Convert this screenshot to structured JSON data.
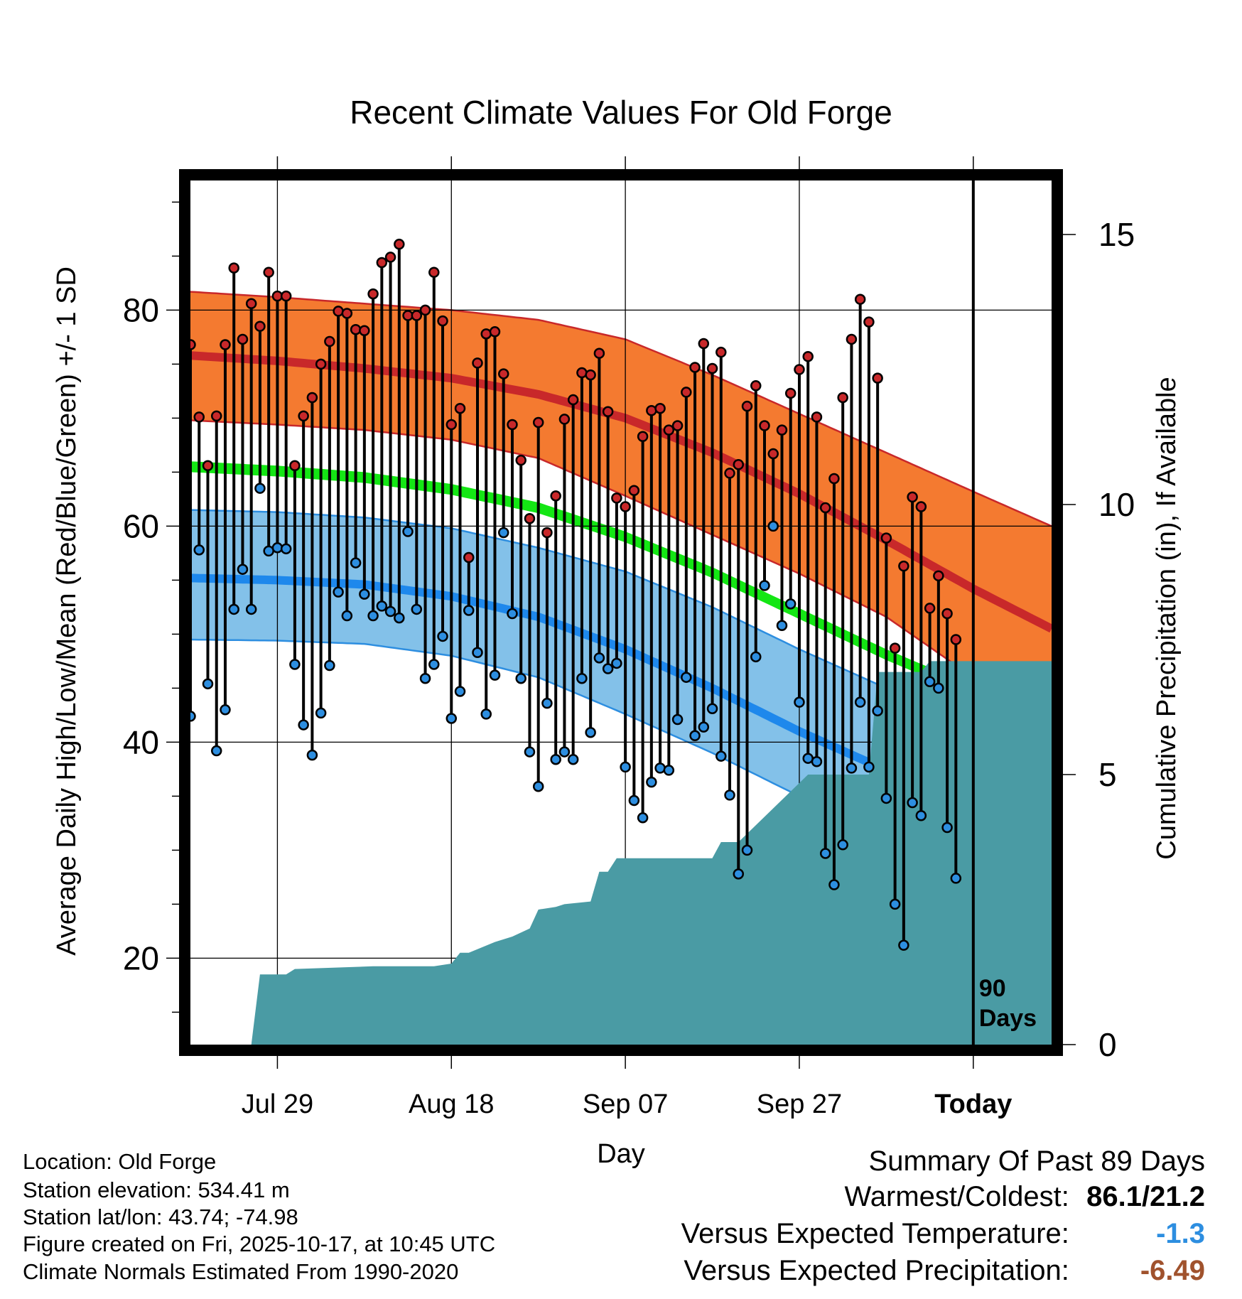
{
  "chart_data": {
    "type": "line",
    "title": "Recent Climate Values For Old Forge",
    "xlabel": "Day",
    "ylabel": "Average Daily High/Low/Mean (Red/Blue/Green) +/- 1 SD",
    "y2label": "Cumulative Precipitation (in), If Available",
    "x_ticks": [
      {
        "day": 20,
        "label": "Jul 29"
      },
      {
        "day": 40,
        "label": "Aug 18"
      },
      {
        "day": 60,
        "label": "Sep 07"
      },
      {
        "day": 80,
        "label": "Sep 27"
      },
      {
        "day": 100,
        "label": "Today"
      }
    ],
    "xlim": [
      10,
      109
    ],
    "ylim": [
      12,
      92
    ],
    "y_ticks": [
      20,
      40,
      60,
      80
    ],
    "y2lim": [
      0,
      16
    ],
    "y2_ticks": [
      0,
      5,
      10,
      15
    ],
    "today_day": 100,
    "today_note": [
      "90",
      "Days"
    ],
    "normal_days": [
      10,
      20,
      30,
      40,
      50,
      60,
      70,
      80,
      90,
      100,
      109
    ],
    "normal_high_mean": [
      75.8,
      75.3,
      74.6,
      73.7,
      72.2,
      70.0,
      66.8,
      63.0,
      58.7,
      54.2,
      50.5
    ],
    "normal_high_upper": [
      81.7,
      81.2,
      80.6,
      80.0,
      79.1,
      77.3,
      74.0,
      70.4,
      66.8,
      63.2,
      60.0
    ],
    "normal_high_lower": [
      69.8,
      69.4,
      68.9,
      68.0,
      66.3,
      62.8,
      59.2,
      55.6,
      51.6,
      46.0,
      41.2
    ],
    "normal_mean_upper": [
      66.0,
      65.6,
      65.0,
      63.9,
      62.2,
      59.5,
      56.2,
      52.4,
      48.6,
      45.2,
      41.8
    ],
    "normal_mean_lower": [
      65.0,
      64.6,
      64.0,
      62.9,
      61.2,
      58.5,
      55.2,
      51.4,
      47.6,
      44.2,
      40.8
    ],
    "normal_low_mean": [
      55.2,
      55.0,
      54.6,
      53.5,
      51.6,
      48.6,
      45.0,
      41.0,
      37.4,
      35.3,
      33.0
    ],
    "normal_low_upper": [
      61.5,
      61.3,
      60.8,
      59.8,
      58.0,
      55.8,
      52.5,
      48.6,
      45.0,
      43.5,
      41.0
    ],
    "normal_low_lower": [
      49.5,
      49.4,
      49.1,
      48.0,
      46.0,
      42.6,
      39.0,
      35.0,
      31.0,
      27.5,
      25.0
    ],
    "series": [
      {
        "name": "Daily High",
        "color": "#c8282a",
        "values": [
          76.8,
          70.1,
          65.6,
          70.2,
          76.8,
          83.9,
          77.3,
          80.6,
          78.5,
          83.5,
          81.3,
          81.3,
          65.6,
          70.2,
          71.9,
          75.0,
          77.1,
          79.9,
          79.7,
          78.2,
          78.1,
          81.5,
          84.4,
          84.9,
          86.1,
          79.5,
          79.5,
          80.0,
          83.5,
          79.0,
          69.4,
          70.9,
          57.1,
          75.1,
          77.8,
          78.0,
          74.1,
          69.4,
          66.1,
          60.7,
          69.6,
          59.4,
          62.8,
          69.9,
          71.7,
          74.2,
          74.0,
          76.0,
          70.6,
          62.6,
          61.8,
          63.3,
          68.3,
          70.7,
          70.9,
          68.9,
          69.3,
          72.4,
          74.7,
          76.9,
          74.6,
          76.1,
          64.9,
          65.7,
          71.1,
          73.0,
          69.3,
          66.7,
          68.9,
          72.3,
          74.5,
          75.7,
          70.1,
          61.7,
          64.4,
          71.9,
          77.3,
          81.0,
          78.9,
          73.7,
          58.9,
          48.7,
          56.3,
          62.7,
          61.8,
          52.4,
          55.4,
          51.9,
          49.5
        ]
      },
      {
        "name": "Daily Low",
        "color": "#2d8ee0",
        "values": [
          42.4,
          57.8,
          45.4,
          39.2,
          43.0,
          52.3,
          56.0,
          52.3,
          63.5,
          57.7,
          58.0,
          57.9,
          47.2,
          41.6,
          38.8,
          42.7,
          47.1,
          53.9,
          51.7,
          56.6,
          53.7,
          51.7,
          52.6,
          52.1,
          51.5,
          59.5,
          52.3,
          45.9,
          47.2,
          49.8,
          42.2,
          44.7,
          52.2,
          48.3,
          42.6,
          46.2,
          59.4,
          51.9,
          45.9,
          39.1,
          35.9,
          43.6,
          38.4,
          39.1,
          38.4,
          45.9,
          40.9,
          47.8,
          46.8,
          47.3,
          37.7,
          34.6,
          33.0,
          36.3,
          37.6,
          37.4,
          42.1,
          46.0,
          40.6,
          41.4,
          43.1,
          38.7,
          35.1,
          27.8,
          30.0,
          47.9,
          54.5,
          60.0,
          50.8,
          52.8,
          43.7,
          38.5,
          38.2,
          29.7,
          26.8,
          30.5,
          37.6,
          43.7,
          37.7,
          42.9,
          34.8,
          25.0,
          21.2,
          34.4,
          33.2,
          45.6,
          45.0,
          32.1,
          27.4
        ]
      },
      {
        "name": "Cumulative Precipitation",
        "color": "#4a9ba4",
        "days": [
          10,
          17,
          18,
          21,
          22,
          31,
          38,
          40,
          41,
          42,
          45,
          47,
          49,
          50,
          52,
          53,
          56,
          57,
          58,
          59,
          60,
          62,
          66,
          69,
          70,
          71,
          73,
          81,
          88,
          89,
          90,
          94,
          95,
          109
        ],
        "values": [
          0.0,
          0.0,
          1.3,
          1.3,
          1.4,
          1.45,
          1.45,
          1.5,
          1.7,
          1.7,
          1.9,
          2.0,
          2.15,
          2.5,
          2.55,
          2.6,
          2.65,
          3.2,
          3.2,
          3.45,
          3.45,
          3.45,
          3.45,
          3.45,
          3.45,
          3.75,
          3.75,
          5.0,
          5.0,
          6.9,
          6.9,
          6.9,
          7.1,
          7.1
        ]
      }
    ]
  },
  "info": {
    "location": "Location: Old Forge",
    "elevation": "Station elevation: 534.41 m",
    "latlon": "Station lat/lon: 43.74; -74.98",
    "created": "Figure created on Fri, 2025-10-17, at 10:45 UTC",
    "normals": "Climate Normals Estimated From 1990-2020"
  },
  "summary": {
    "heading": "Summary Of Past 89 Days",
    "warm_label": "Warmest/Coldest:",
    "warm_value": "86.1/21.2",
    "temp_label": "Versus Expected Temperature:",
    "temp_value": "-1.3",
    "temp_color": "#2d8ee0",
    "precip_label": "Versus Expected Precipitation:",
    "precip_value": "-6.49",
    "precip_color": "#a0522d"
  }
}
